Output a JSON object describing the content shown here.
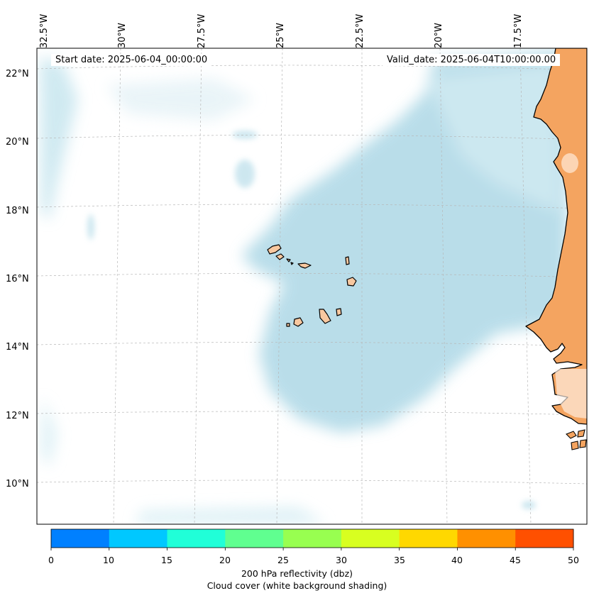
{
  "map": {
    "start_date": "Start date: 2025-06-04_00:00:00",
    "valid_date": "Valid_date: 2025-06-04T10:00:00.00",
    "lon_labels": [
      "32.5°W",
      "30°W",
      "27.5°W",
      "25°W",
      "22.5°W",
      "20°W",
      "17.5°W"
    ],
    "lat_labels": [
      "22°N",
      "20°N",
      "18°N",
      "16°N",
      "14°N",
      "12°N",
      "10°N"
    ],
    "land_color": "#f4a460",
    "cloud_color": "#add8e6"
  },
  "colorbar": {
    "ticks": [
      "0",
      "10",
      "15",
      "20",
      "25",
      "30",
      "35",
      "40",
      "45",
      "50"
    ],
    "colors": [
      "#0080ff",
      "#00c8ff",
      "#20ffd8",
      "#60ff90",
      "#98ff50",
      "#d8ff20",
      "#ffd800",
      "#ff9000",
      "#ff5000"
    ],
    "label_line1": "200 hPa reflectivity (dbz)",
    "label_line2": "Cloud cover (white background shading)"
  }
}
